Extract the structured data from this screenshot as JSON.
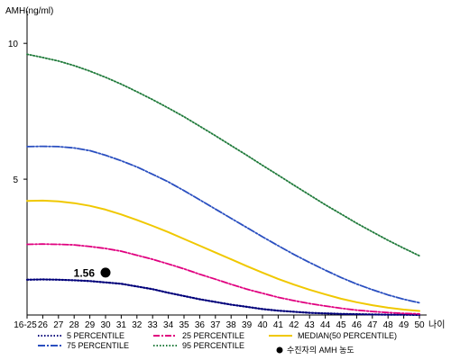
{
  "chart_data": {
    "type": "line",
    "ylabel": "AMH(ng/ml)",
    "xlabel": "나이",
    "ylim": [
      0,
      11
    ],
    "yticks": [
      5,
      10
    ],
    "x_ticks": [
      "16-25",
      "26",
      "27",
      "28",
      "29",
      "30",
      "31",
      "32",
      "33",
      "34",
      "35",
      "36",
      "37",
      "38",
      "39",
      "40",
      "41",
      "42",
      "43",
      "44",
      "45",
      "46",
      "47",
      "48",
      "49",
      "50"
    ],
    "x_positions": [
      25,
      26,
      27,
      28,
      29,
      30,
      31,
      32,
      33,
      34,
      35,
      36,
      37,
      38,
      39,
      40,
      41,
      42,
      43,
      44,
      45,
      46,
      47,
      48,
      49,
      50
    ],
    "grid": false,
    "series": [
      {
        "name": "5 PERCENTILE",
        "color": "#00007a",
        "dash": "1.5,2",
        "width": 2.2,
        "x": [
          25,
          26,
          27,
          28,
          29,
          30,
          31,
          32,
          33,
          34,
          35,
          36,
          37,
          38,
          39,
          40,
          41,
          42,
          43,
          44,
          45,
          46,
          47,
          48,
          49,
          50
        ],
        "values": [
          1.3,
          1.31,
          1.3,
          1.28,
          1.25,
          1.2,
          1.15,
          1.05,
          0.95,
          0.82,
          0.7,
          0.58,
          0.48,
          0.38,
          0.3,
          0.22,
          0.16,
          0.12,
          0.08,
          0.06,
          0.04,
          0.03,
          0.02,
          0.01,
          0.01,
          0.0
        ]
      },
      {
        "name": "25 PERCENTILE",
        "color": "#e0007f",
        "dash": "7,2,2,2",
        "width": 1.8,
        "x": [
          25,
          26,
          27,
          28,
          29,
          30,
          31,
          32,
          33,
          34,
          35,
          36,
          37,
          38,
          39,
          40,
          41,
          42,
          43,
          44,
          45,
          46,
          47,
          48,
          49,
          50
        ],
        "values": [
          2.6,
          2.61,
          2.6,
          2.58,
          2.52,
          2.45,
          2.35,
          2.2,
          2.05,
          1.88,
          1.7,
          1.5,
          1.32,
          1.13,
          0.95,
          0.8,
          0.65,
          0.53,
          0.42,
          0.33,
          0.25,
          0.18,
          0.13,
          0.09,
          0.06,
          0.04
        ]
      },
      {
        "name": "MEDIAN(50 PERCENTILE)",
        "color": "#f0c800",
        "dash": "",
        "width": 2,
        "x": [
          25,
          26,
          27,
          28,
          29,
          30,
          31,
          32,
          33,
          34,
          35,
          36,
          37,
          38,
          39,
          40,
          41,
          42,
          43,
          44,
          45,
          46,
          47,
          48,
          49,
          50
        ],
        "values": [
          4.2,
          4.21,
          4.18,
          4.12,
          4.02,
          3.88,
          3.7,
          3.5,
          3.28,
          3.05,
          2.8,
          2.55,
          2.3,
          2.05,
          1.8,
          1.56,
          1.33,
          1.12,
          0.93,
          0.76,
          0.6,
          0.47,
          0.36,
          0.27,
          0.2,
          0.15
        ]
      },
      {
        "name": "75 PERCENTILE",
        "color": "#2a4fc0",
        "dash": "8,2,2,2",
        "width": 1.8,
        "x": [
          25,
          26,
          27,
          28,
          29,
          30,
          31,
          32,
          33,
          34,
          35,
          36,
          37,
          38,
          39,
          40,
          41,
          42,
          43,
          44,
          45,
          46,
          47,
          48,
          49,
          50
        ],
        "values": [
          6.2,
          6.21,
          6.2,
          6.15,
          6.05,
          5.88,
          5.68,
          5.45,
          5.18,
          4.9,
          4.58,
          4.24,
          3.9,
          3.56,
          3.22,
          2.88,
          2.55,
          2.23,
          1.93,
          1.65,
          1.38,
          1.14,
          0.93,
          0.74,
          0.58,
          0.45
        ]
      },
      {
        "name": "95 PERCENTILE",
        "color": "#1f7a3a",
        "dash": "1.5,2",
        "width": 1.8,
        "x": [
          25,
          26,
          27,
          28,
          29,
          30,
          31,
          32,
          33,
          34,
          35,
          36,
          37,
          38,
          39,
          40,
          41,
          42,
          43,
          44,
          45,
          46,
          47,
          48,
          49,
          50
        ],
        "values": [
          9.6,
          9.48,
          9.35,
          9.18,
          8.98,
          8.75,
          8.5,
          8.22,
          7.93,
          7.62,
          7.3,
          6.95,
          6.6,
          6.24,
          5.88,
          5.51,
          5.15,
          4.78,
          4.42,
          4.06,
          3.72,
          3.38,
          3.06,
          2.75,
          2.46,
          2.18
        ]
      }
    ],
    "annotation": {
      "x": 30,
      "y": 1.56,
      "label": "1.56",
      "legend": "수진자의 AMH 농도"
    },
    "legend_position": "bottom"
  }
}
